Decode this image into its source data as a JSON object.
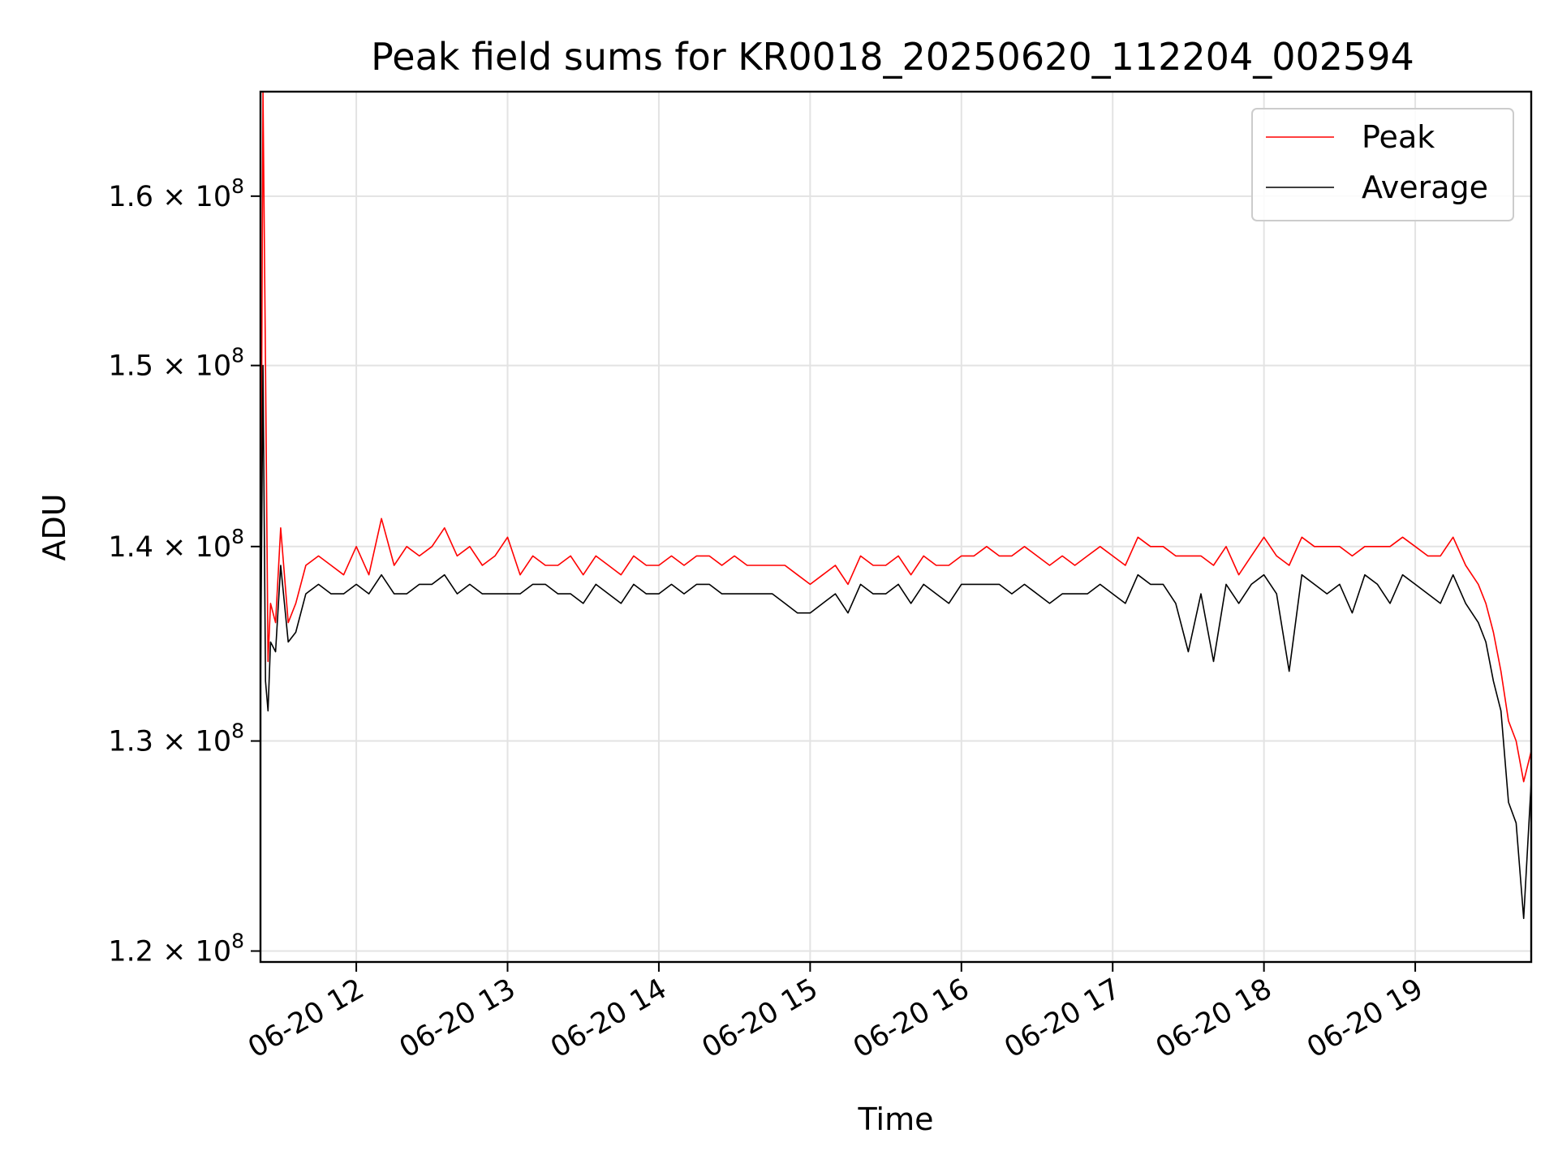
{
  "chart_data": {
    "type": "line",
    "title": "Peak field sums for KR0018_20250620_112204_002594",
    "xlabel": "Time",
    "ylabel": "ADU",
    "yscale": "log",
    "xlim": [
      "06-20 11:22",
      "06-20 19:46"
    ],
    "ylim": [
      119500000,
      166500000
    ],
    "grid": true,
    "legend_position": "top-right",
    "x_ticks": [
      {
        "value": "06-20 12:00",
        "label": "06-20 12"
      },
      {
        "value": "06-20 13:00",
        "label": "06-20 13"
      },
      {
        "value": "06-20 14:00",
        "label": "06-20 14"
      },
      {
        "value": "06-20 15:00",
        "label": "06-20 15"
      },
      {
        "value": "06-20 16:00",
        "label": "06-20 16"
      },
      {
        "value": "06-20 17:00",
        "label": "06-20 17"
      },
      {
        "value": "06-20 18:00",
        "label": "06-20 18"
      },
      {
        "value": "06-20 19:00",
        "label": "06-20 19"
      }
    ],
    "y_ticks": [
      {
        "value": 120000000,
        "mantissa": "1.2",
        "base": "10",
        "exp": "8"
      },
      {
        "value": 130000000,
        "mantissa": "1.3",
        "base": "10",
        "exp": "8"
      },
      {
        "value": 140000000,
        "mantissa": "1.4",
        "base": "10",
        "exp": "8"
      },
      {
        "value": 150000000,
        "mantissa": "1.5",
        "base": "10",
        "exp": "8"
      },
      {
        "value": 160000000,
        "mantissa": "1.6",
        "base": "10",
        "exp": "8"
      }
    ],
    "series": [
      {
        "name": "Peak",
        "color": "#ff0000",
        "x": [
          "06-20 11:22",
          "06-20 11:23",
          "06-20 11:24",
          "06-20 11:25",
          "06-20 11:26",
          "06-20 11:28",
          "06-20 11:30",
          "06-20 11:33",
          "06-20 11:36",
          "06-20 11:40",
          "06-20 11:45",
          "06-20 11:50",
          "06-20 11:55",
          "06-20 12:00",
          "06-20 12:05",
          "06-20 12:10",
          "06-20 12:15",
          "06-20 12:20",
          "06-20 12:25",
          "06-20 12:30",
          "06-20 12:35",
          "06-20 12:40",
          "06-20 12:45",
          "06-20 12:50",
          "06-20 12:55",
          "06-20 13:00",
          "06-20 13:05",
          "06-20 13:10",
          "06-20 13:15",
          "06-20 13:20",
          "06-20 13:25",
          "06-20 13:30",
          "06-20 13:35",
          "06-20 13:40",
          "06-20 13:45",
          "06-20 13:50",
          "06-20 13:55",
          "06-20 14:00",
          "06-20 14:05",
          "06-20 14:10",
          "06-20 14:15",
          "06-20 14:20",
          "06-20 14:25",
          "06-20 14:30",
          "06-20 14:35",
          "06-20 14:40",
          "06-20 14:45",
          "06-20 14:50",
          "06-20 14:55",
          "06-20 15:00",
          "06-20 15:05",
          "06-20 15:10",
          "06-20 15:15",
          "06-20 15:20",
          "06-20 15:25",
          "06-20 15:30",
          "06-20 15:35",
          "06-20 15:40",
          "06-20 15:45",
          "06-20 15:50",
          "06-20 15:55",
          "06-20 16:00",
          "06-20 16:05",
          "06-20 16:10",
          "06-20 16:15",
          "06-20 16:20",
          "06-20 16:25",
          "06-20 16:30",
          "06-20 16:35",
          "06-20 16:40",
          "06-20 16:45",
          "06-20 16:50",
          "06-20 16:55",
          "06-20 17:00",
          "06-20 17:05",
          "06-20 17:10",
          "06-20 17:15",
          "06-20 17:20",
          "06-20 17:25",
          "06-20 17:30",
          "06-20 17:35",
          "06-20 17:40",
          "06-20 17:45",
          "06-20 17:50",
          "06-20 17:55",
          "06-20 18:00",
          "06-20 18:05",
          "06-20 18:10",
          "06-20 18:15",
          "06-20 18:20",
          "06-20 18:25",
          "06-20 18:30",
          "06-20 18:35",
          "06-20 18:40",
          "06-20 18:45",
          "06-20 18:50",
          "06-20 18:55",
          "06-20 19:00",
          "06-20 19:05",
          "06-20 19:10",
          "06-20 19:15",
          "06-20 19:20",
          "06-20 19:25",
          "06-20 19:28",
          "06-20 19:31",
          "06-20 19:34",
          "06-20 19:37",
          "06-20 19:40",
          "06-20 19:43",
          "06-20 19:46"
        ],
        "y": [
          135000000,
          166500000,
          150000000,
          134000000,
          137000000,
          136000000,
          141000000,
          136000000,
          137000000,
          139000000,
          139500000,
          139000000,
          138500000,
          140000000,
          138500000,
          141500000,
          139000000,
          140000000,
          139500000,
          140000000,
          141000000,
          139500000,
          140000000,
          139000000,
          139500000,
          140500000,
          138500000,
          139500000,
          139000000,
          139000000,
          139500000,
          138500000,
          139500000,
          139000000,
          138500000,
          139500000,
          139000000,
          139000000,
          139500000,
          139000000,
          139500000,
          139500000,
          139000000,
          139500000,
          139000000,
          139000000,
          139000000,
          139000000,
          138500000,
          138000000,
          138500000,
          139000000,
          138000000,
          139500000,
          139000000,
          139000000,
          139500000,
          138500000,
          139500000,
          139000000,
          139000000,
          139500000,
          139500000,
          140000000,
          139500000,
          139500000,
          140000000,
          139500000,
          139000000,
          139500000,
          139000000,
          139500000,
          140000000,
          139500000,
          139000000,
          140500000,
          140000000,
          140000000,
          139500000,
          139500000,
          139500000,
          139000000,
          140000000,
          138500000,
          139500000,
          140500000,
          139500000,
          139000000,
          140500000,
          140000000,
          140000000,
          140000000,
          139500000,
          140000000,
          140000000,
          140000000,
          140500000,
          140000000,
          139500000,
          139500000,
          140500000,
          139000000,
          138000000,
          137000000,
          135500000,
          133500000,
          131000000,
          130000000,
          128000000,
          129500000
        ]
      },
      {
        "name": "Average",
        "color": "#000000",
        "x": [
          "06-20 11:22",
          "06-20 11:23",
          "06-20 11:24",
          "06-20 11:25",
          "06-20 11:26",
          "06-20 11:28",
          "06-20 11:30",
          "06-20 11:33",
          "06-20 11:36",
          "06-20 11:40",
          "06-20 11:45",
          "06-20 11:50",
          "06-20 11:55",
          "06-20 12:00",
          "06-20 12:05",
          "06-20 12:10",
          "06-20 12:15",
          "06-20 12:20",
          "06-20 12:25",
          "06-20 12:30",
          "06-20 12:35",
          "06-20 12:40",
          "06-20 12:45",
          "06-20 12:50",
          "06-20 12:55",
          "06-20 13:00",
          "06-20 13:05",
          "06-20 13:10",
          "06-20 13:15",
          "06-20 13:20",
          "06-20 13:25",
          "06-20 13:30",
          "06-20 13:35",
          "06-20 13:40",
          "06-20 13:45",
          "06-20 13:50",
          "06-20 13:55",
          "06-20 14:00",
          "06-20 14:05",
          "06-20 14:10",
          "06-20 14:15",
          "06-20 14:20",
          "06-20 14:25",
          "06-20 14:30",
          "06-20 14:35",
          "06-20 14:40",
          "06-20 14:45",
          "06-20 14:50",
          "06-20 14:55",
          "06-20 15:00",
          "06-20 15:05",
          "06-20 15:10",
          "06-20 15:15",
          "06-20 15:20",
          "06-20 15:25",
          "06-20 15:30",
          "06-20 15:35",
          "06-20 15:40",
          "06-20 15:45",
          "06-20 15:50",
          "06-20 15:55",
          "06-20 16:00",
          "06-20 16:05",
          "06-20 16:10",
          "06-20 16:15",
          "06-20 16:20",
          "06-20 16:25",
          "06-20 16:30",
          "06-20 16:35",
          "06-20 16:40",
          "06-20 16:45",
          "06-20 16:50",
          "06-20 16:55",
          "06-20 17:00",
          "06-20 17:05",
          "06-20 17:10",
          "06-20 17:15",
          "06-20 17:20",
          "06-20 17:25",
          "06-20 17:30",
          "06-20 17:35",
          "06-20 17:40",
          "06-20 17:45",
          "06-20 17:50",
          "06-20 17:55",
          "06-20 18:00",
          "06-20 18:05",
          "06-20 18:10",
          "06-20 18:15",
          "06-20 18:20",
          "06-20 18:25",
          "06-20 18:30",
          "06-20 18:35",
          "06-20 18:40",
          "06-20 18:45",
          "06-20 18:50",
          "06-20 18:55",
          "06-20 19:00",
          "06-20 19:05",
          "06-20 19:10",
          "06-20 19:15",
          "06-20 19:20",
          "06-20 19:25",
          "06-20 19:28",
          "06-20 19:31",
          "06-20 19:34",
          "06-20 19:37",
          "06-20 19:40",
          "06-20 19:43",
          "06-20 19:46"
        ],
        "y": [
          132500000,
          150000000,
          133000000,
          131500000,
          135000000,
          134500000,
          139000000,
          135000000,
          135500000,
          137500000,
          138000000,
          137500000,
          137500000,
          138000000,
          137500000,
          138500000,
          137500000,
          137500000,
          138000000,
          138000000,
          138500000,
          137500000,
          138000000,
          137500000,
          137500000,
          137500000,
          137500000,
          138000000,
          138000000,
          137500000,
          137500000,
          137000000,
          138000000,
          137500000,
          137000000,
          138000000,
          137500000,
          137500000,
          138000000,
          137500000,
          138000000,
          138000000,
          137500000,
          137500000,
          137500000,
          137500000,
          137500000,
          137000000,
          136500000,
          136500000,
          137000000,
          137500000,
          136500000,
          138000000,
          137500000,
          137500000,
          138000000,
          137000000,
          138000000,
          137500000,
          137000000,
          138000000,
          138000000,
          138000000,
          138000000,
          137500000,
          138000000,
          137500000,
          137000000,
          137500000,
          137500000,
          137500000,
          138000000,
          137500000,
          137000000,
          138500000,
          138000000,
          138000000,
          137000000,
          134500000,
          137500000,
          134000000,
          138000000,
          137000000,
          138000000,
          138500000,
          137500000,
          133500000,
          138500000,
          138000000,
          137500000,
          138000000,
          136500000,
          138500000,
          138000000,
          137000000,
          138500000,
          138000000,
          137500000,
          137000000,
          138500000,
          137000000,
          136000000,
          135000000,
          133000000,
          131500000,
          127000000,
          126000000,
          121500000,
          128000000
        ]
      }
    ]
  }
}
